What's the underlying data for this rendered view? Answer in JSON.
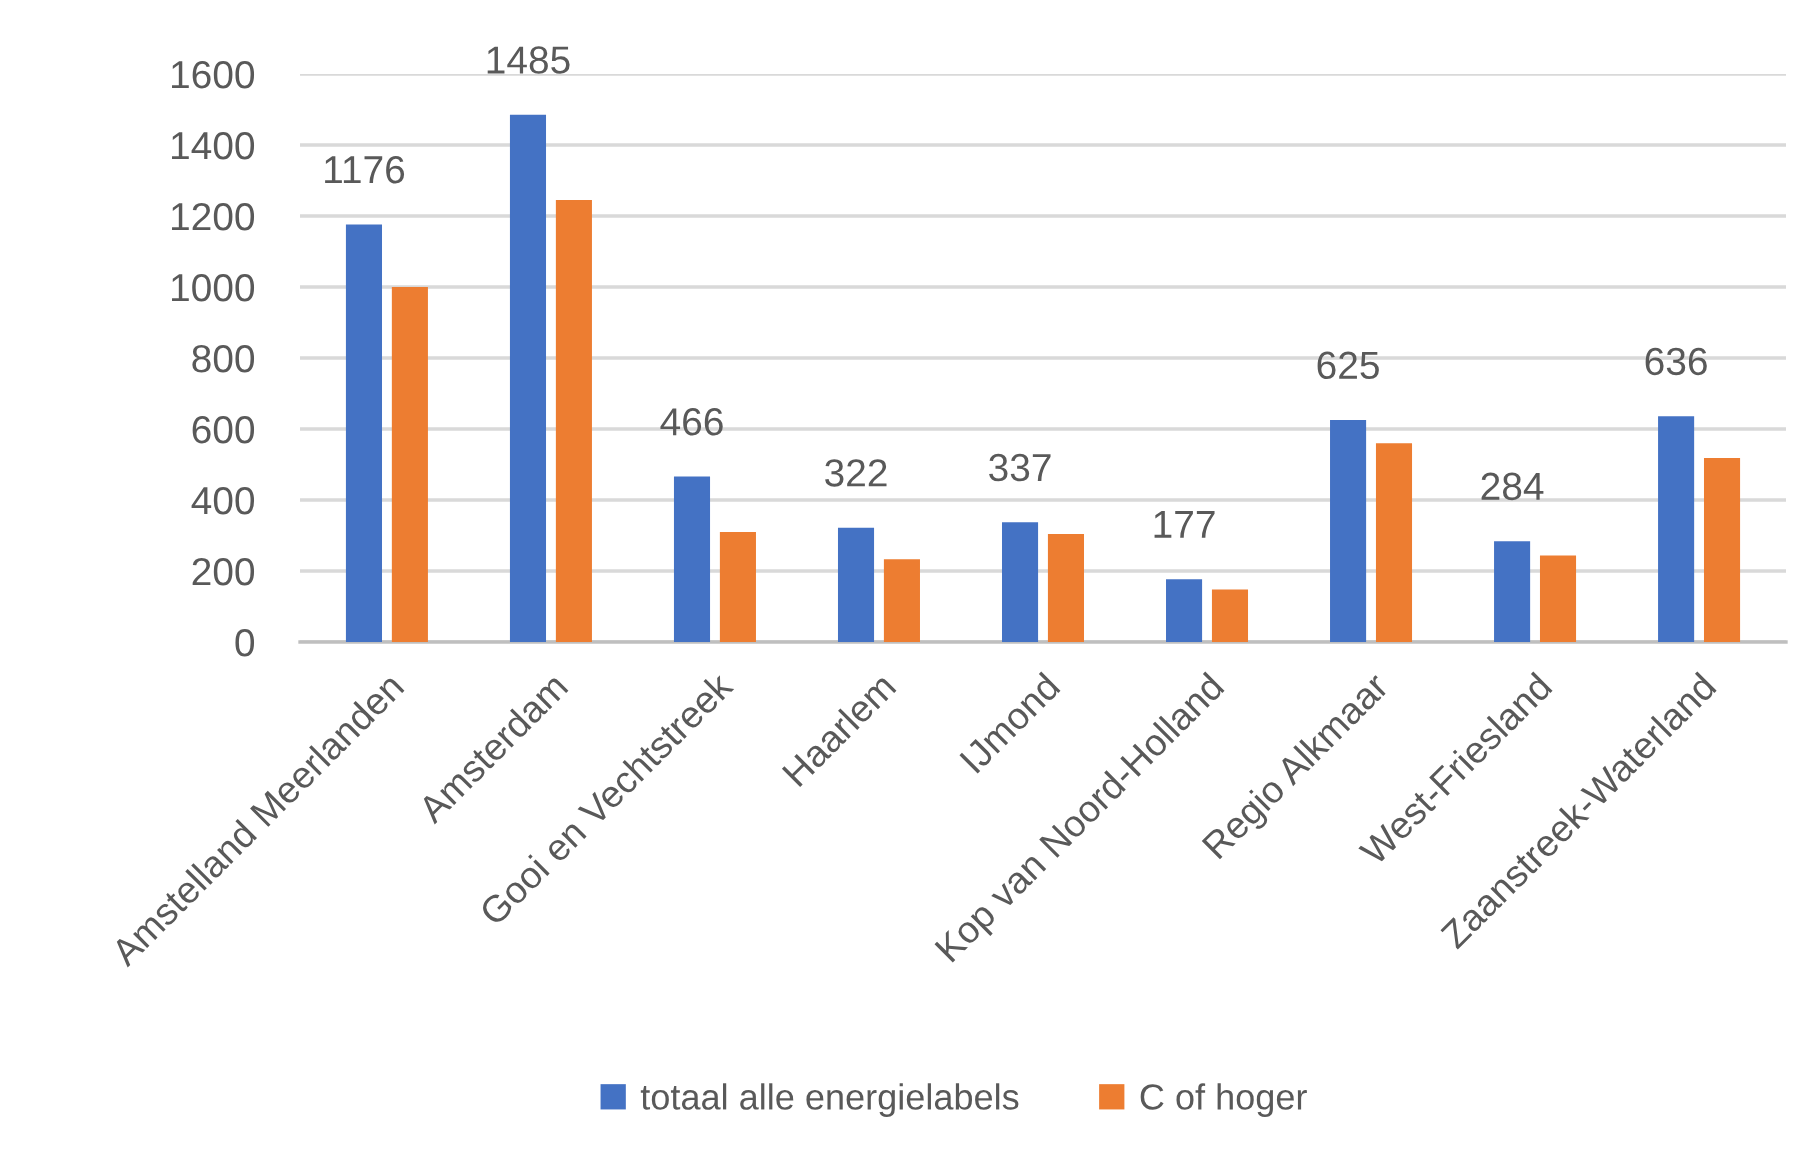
{
  "chart_data": {
    "type": "bar",
    "categories": [
      "Amstelland Meerlanden",
      "Amsterdam",
      "Gooi en Vechtstreek",
      "Haarlem",
      "IJmond",
      "Kop van Noord-Holland",
      "Regio Alkmaar",
      "West-Friesland",
      "Zaanstreek-Waterland"
    ],
    "series": [
      {
        "name": "totaal alle energielabels",
        "color": "#4472c4",
        "values": [
          1176,
          1485,
          466,
          322,
          337,
          177,
          625,
          284,
          636
        ],
        "value_labels": [
          "1176",
          "1485",
          "466",
          "322",
          "337",
          "177",
          "625",
          "284",
          "636"
        ]
      },
      {
        "name": "C of hoger",
        "color": "#ed7d31",
        "values": [
          1000,
          1245,
          310,
          233,
          304,
          148,
          560,
          244,
          518
        ]
      }
    ],
    "ylim": [
      0,
      1600
    ],
    "yticks": [
      0,
      200,
      400,
      600,
      800,
      1000,
      1200,
      1400,
      1600
    ],
    "grid": "y",
    "legend": "bottom"
  }
}
